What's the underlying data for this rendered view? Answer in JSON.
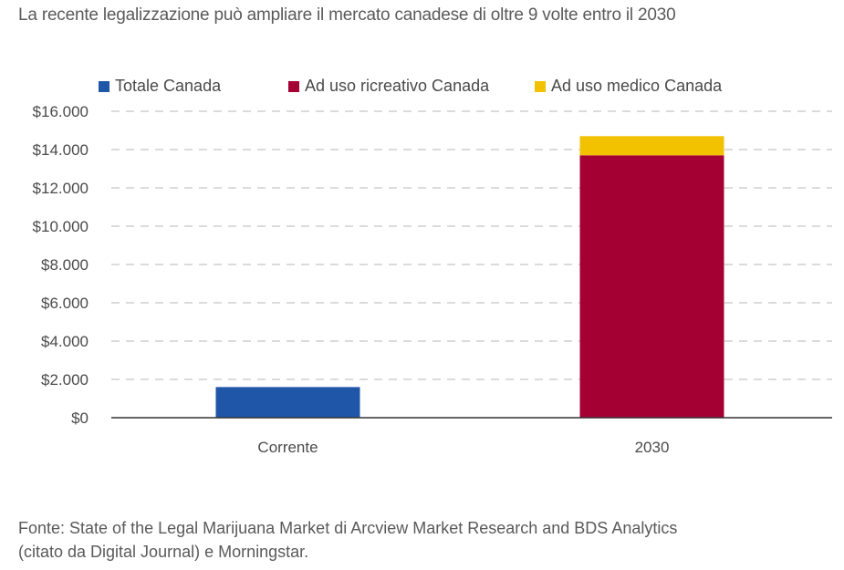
{
  "title": "La recente legalizzazione può ampliare il mercato canadese di oltre 9 volte entro il 2030",
  "source_line1": "Fonte: State of the Legal Marijuana Market di Arcview Market Research and BDS Analytics",
  "source_line2": "(citato da Digital Journal) e Morningstar.",
  "chart_data": {
    "type": "bar",
    "stacked": true,
    "categories": [
      "Corrente",
      "2030"
    ],
    "series": [
      {
        "name": "Totale Canada",
        "color": "#1f56a8",
        "values": [
          1600,
          0
        ]
      },
      {
        "name": "Ad uso ricreativo Canada",
        "color": "#a50034",
        "values": [
          0,
          13700
        ]
      },
      {
        "name": "Ad uso medico Canada",
        "color": "#f2c100",
        "values": [
          0,
          1000
        ]
      }
    ],
    "ylim": [
      0,
      16000
    ],
    "yticks": [
      0,
      2000,
      4000,
      6000,
      8000,
      10000,
      12000,
      14000,
      16000
    ],
    "ytick_labels": [
      "$0",
      "$2.000",
      "$4.000",
      "$6.000",
      "$8.000",
      "$10.000",
      "$12.000",
      "$14.000",
      "$16.000"
    ],
    "grid": true,
    "legend_position": "top"
  }
}
